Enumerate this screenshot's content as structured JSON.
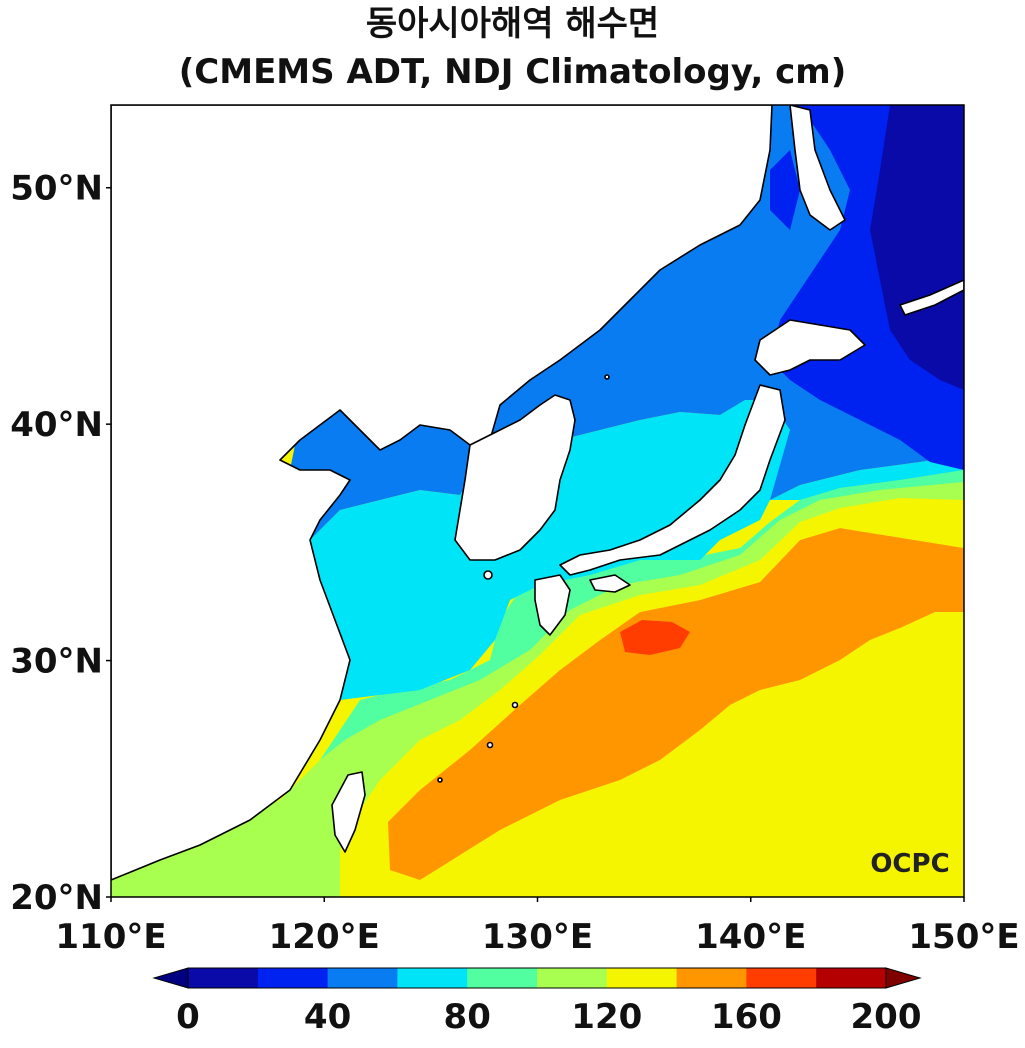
{
  "figure": {
    "title_line1": "동아시아해역 해수면",
    "title_line2": "(CMEMS ADT, NDJ Climatology, cm)",
    "logo_text": "OCPC"
  },
  "map": {
    "lon_range": [
      110,
      150
    ],
    "lat_range": [
      20,
      53.5
    ],
    "lon_ticks": [
      {
        "value": 110,
        "label": "110°E"
      },
      {
        "value": 120,
        "label": "120°E"
      },
      {
        "value": 130,
        "label": "130°E"
      },
      {
        "value": 140,
        "label": "140°E"
      },
      {
        "value": 150,
        "label": "150°E"
      }
    ],
    "lat_ticks": [
      {
        "value": 20,
        "label": "20°N"
      },
      {
        "value": 30,
        "label": "30°N"
      },
      {
        "value": 40,
        "label": "40°N"
      },
      {
        "value": 50,
        "label": "50°N"
      }
    ],
    "land_color": "#ffffff",
    "coast_color": "#000000"
  },
  "colorbar": {
    "min": 0,
    "max": 200,
    "step": 20,
    "extend": "both",
    "colors": [
      "#0a0aa8",
      "#0022f0",
      "#0a7cf2",
      "#00e4f8",
      "#52ffa0",
      "#a8ff50",
      "#f5f500",
      "#ff9600",
      "#ff3d00",
      "#b40000"
    ],
    "under_color": "#000080",
    "over_color": "#800000",
    "tick_labels": [
      {
        "value": 0,
        "label": "0"
      },
      {
        "value": 40,
        "label": "40"
      },
      {
        "value": 80,
        "label": "80"
      },
      {
        "value": 120,
        "label": "120"
      },
      {
        "value": 160,
        "label": "160"
      },
      {
        "value": 200,
        "label": "200"
      }
    ]
  }
}
